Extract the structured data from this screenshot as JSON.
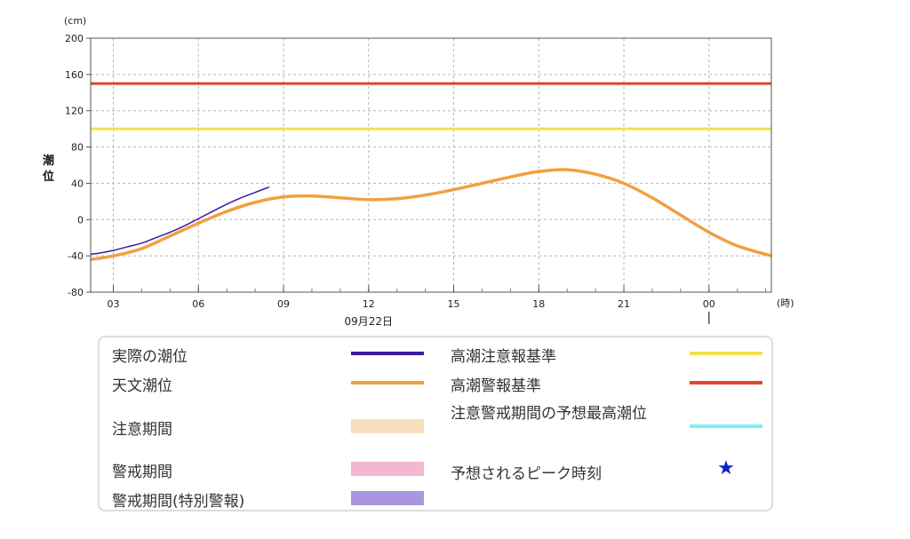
{
  "chart_data": {
    "type": "line",
    "y_unit": "(cm)",
    "x_unit": "(時)",
    "ylabel": "潮位",
    "date_label": "09月22日",
    "ylim": [
      -80,
      200
    ],
    "y_ticks": [
      "200",
      "160",
      "120",
      "80",
      "40",
      "0",
      "-40",
      "-80"
    ],
    "y_tick_values": [
      200,
      160,
      120,
      80,
      40,
      0,
      -40,
      -80
    ],
    "x_ticks": [
      "03",
      "06",
      "09",
      "12",
      "15",
      "18",
      "21",
      "00"
    ],
    "x_tick_hours": [
      3,
      6,
      9,
      12,
      15,
      18,
      21,
      24
    ],
    "xlim_hours": [
      2.2,
      26.2
    ],
    "grid": true,
    "thresholds": [
      {
        "name": "高潮注意報基準",
        "value": 100,
        "color": "#f4e04d"
      },
      {
        "name": "高潮警報基準",
        "value": 150,
        "color": "#e0452e"
      }
    ],
    "series": [
      {
        "name": "実際の潮位",
        "color": "#3a1a9e",
        "x": [
          2.2,
          2.5,
          3.0,
          3.5,
          4.0,
          4.5,
          5.0,
          5.5,
          6.0,
          6.5,
          7.0,
          7.5,
          8.0,
          8.5
        ],
        "y": [
          -38,
          -37,
          -34,
          -30,
          -26,
          -20,
          -14,
          -7,
          1,
          9,
          17,
          24,
          30,
          36
        ]
      },
      {
        "name": "天文潮位",
        "color": "#f0a040",
        "x": [
          2.2,
          3,
          4,
          5,
          6,
          7,
          8,
          9,
          10,
          11,
          12,
          13,
          14,
          15,
          16,
          17,
          18,
          19,
          20,
          21,
          22,
          23,
          24,
          25,
          26.2
        ],
        "y": [
          -44,
          -40,
          -32,
          -18,
          -4,
          9,
          19,
          25,
          26,
          24,
          22,
          23,
          27,
          33,
          40,
          47,
          53,
          55,
          50,
          40,
          24,
          5,
          -14,
          -29,
          -40
        ]
      }
    ],
    "legend": {
      "left": [
        {
          "label": "実際の潮位",
          "kind": "line",
          "color": "#3a1a9e"
        },
        {
          "label": "天文潮位",
          "kind": "line",
          "color": "#f0a040"
        },
        {
          "label": "注意期間",
          "kind": "band",
          "color": "#f8dfbb"
        },
        {
          "label": "警戒期間",
          "kind": "band",
          "color": "#f4b6d0"
        },
        {
          "label": "警戒期間(特別警報)",
          "kind": "band",
          "color": "#a996e0"
        }
      ],
      "right": [
        {
          "label": "高潮注意報基準",
          "kind": "line",
          "color": "#f4e04d"
        },
        {
          "label": "高潮警報基準",
          "kind": "line",
          "color": "#e0452e"
        },
        {
          "label": "注意警戒期間の予想最高潮位",
          "kind": "line",
          "color": "#7af0f0"
        },
        {
          "label": "予想されるピーク時刻",
          "kind": "star",
          "color": "#0a20c8"
        }
      ]
    }
  }
}
